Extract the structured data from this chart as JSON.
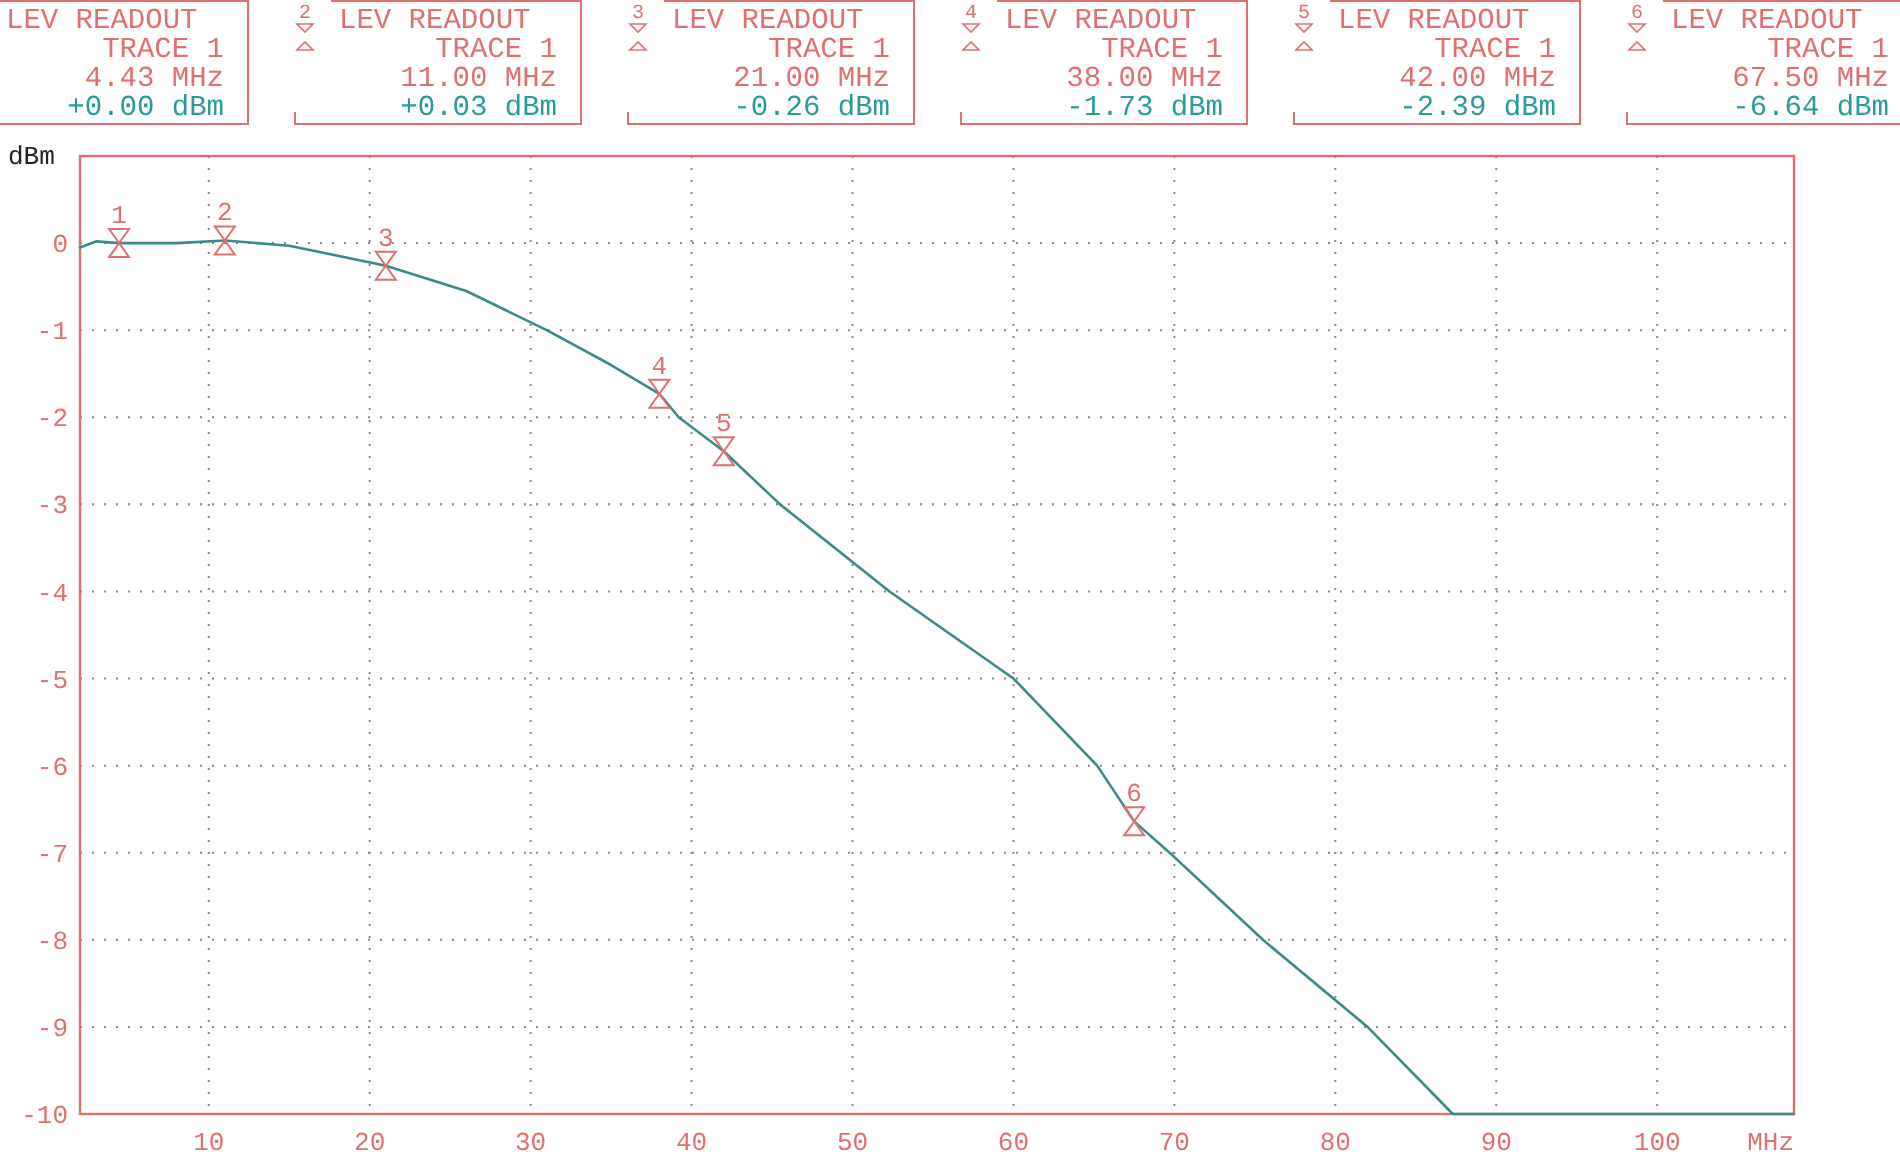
{
  "chart_data": {
    "type": "line",
    "xlabel": "MHz",
    "ylabel": "dBm",
    "xlim": [
      2,
      108.5
    ],
    "xticks": [
      10,
      20,
      30,
      40,
      50,
      60,
      70,
      80,
      90,
      100
    ],
    "ylim": [
      -10,
      1
    ],
    "yticks": [
      0,
      -1,
      -2,
      -3,
      -4,
      -5,
      -6,
      -7,
      -8,
      -9,
      -10
    ],
    "grid": true,
    "line_style": "solid",
    "series": [
      {
        "color": "#3a8a8a",
        "x": [
          2,
          3,
          4.43,
          8,
          11,
          15,
          21,
          26,
          31,
          35,
          38,
          39.2,
          42,
          45.5,
          52.3,
          60,
          65.2,
          67.5,
          70,
          75.5,
          82,
          87.3,
          108.5
        ],
        "values": [
          -0.05,
          0.02,
          0,
          0,
          0.03,
          -0.03,
          -0.26,
          -0.55,
          -1,
          -1.4,
          -1.73,
          -2,
          -2.39,
          -3,
          -4,
          -5,
          -6,
          -6.64,
          -7.05,
          -8,
          -9,
          -10,
          -10
        ]
      }
    ],
    "annotations": [
      "LEV READOUT\nTRACE 1\n4.43 MHz\n+0.00 dBm",
      "2\nLEV READOUT\nTRACE 1\n11.00 MHz\n+0.03 dBm",
      "3\nLEV READOUT\nTRACE 1\n21.00 MHz\n-0.26 dBm",
      "4\nLEV READOUT\nTRACE 1\n38.00 MHz\n-1.73 dBm",
      "5\nLEV READOUT\nTRACE 1\n42.00 MHz\n-2.39 dBm",
      "6\nLEV READOUT\nTRACE 1\n67.50 MHz\n-6.64 dBm",
      {
        "text": "1",
        "x": 4.43,
        "y": 0
      },
      {
        "text": "2",
        "x": 11,
        "y": 0.03
      },
      {
        "text": "3",
        "x": 21,
        "y": -0.26
      },
      {
        "text": "4",
        "x": 38,
        "y": -1.73
      },
      {
        "text": "5",
        "x": 42,
        "y": -2.39
      },
      {
        "text": "6",
        "x": 67.5,
        "y": -6.64
      }
    ]
  }
}
